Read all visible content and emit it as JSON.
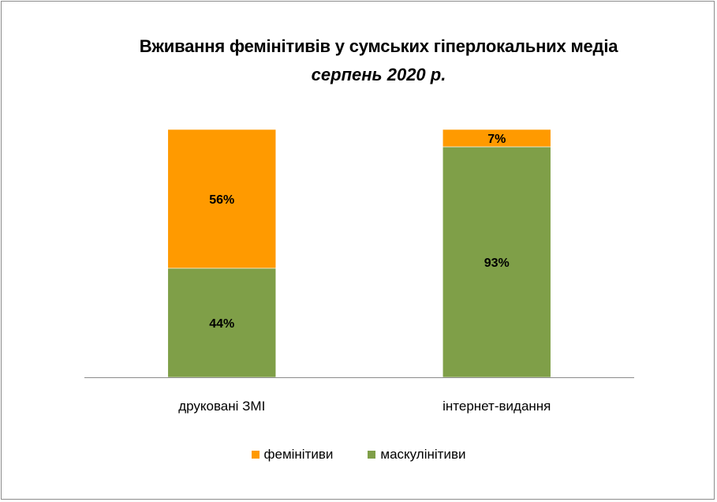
{
  "chart_data": {
    "type": "bar",
    "stacked": true,
    "title": "Вживання фемінітивів у сумських гіперлокальних медіа",
    "subtitle": "серпень 2020 р.",
    "categories": [
      "друковані ЗМІ",
      "інтернет-видання"
    ],
    "series": [
      {
        "name": "маскулінітиви",
        "values": [
          44,
          93
        ],
        "labels": [
          "44%",
          "93%"
        ],
        "color": "#7f9f48"
      },
      {
        "name": "фемінітиви",
        "values": [
          56,
          7
        ],
        "labels": [
          "56%",
          "7%"
        ],
        "color": "#ff9a00"
      }
    ],
    "ylim": [
      0,
      100
    ],
    "grid": false,
    "legend": "bottom"
  }
}
